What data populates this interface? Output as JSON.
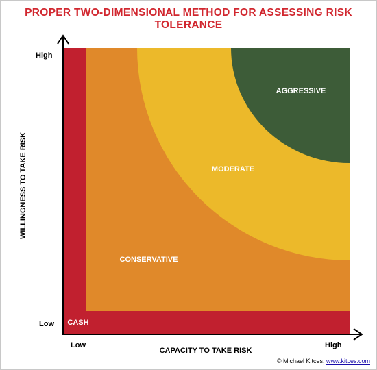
{
  "title": "PROPER TWO-DIMENSIONAL METHOD FOR ASSESSING RISK TOLERANCE",
  "axes": {
    "y_label": "WILLINGNESS TO TAKE RISK",
    "x_label": "CAPACITY TO TAKE RISK",
    "y_high": "High",
    "y_low": "Low",
    "x_low": "Low",
    "x_high": "High"
  },
  "zones": {
    "cash": "CASH",
    "conservative": "CONSERVATIVE",
    "moderate": "MODERATE",
    "aggressive": "AGGRESSIVE"
  },
  "colors": {
    "title": "#d1272f",
    "cash": "#c1202f",
    "conservative": "#e0892a",
    "moderate": "#ecb92a",
    "aggressive": "#3d5c38"
  },
  "credit": {
    "prefix": "© Michael Kitces, ",
    "link": "www.kitces.com"
  }
}
